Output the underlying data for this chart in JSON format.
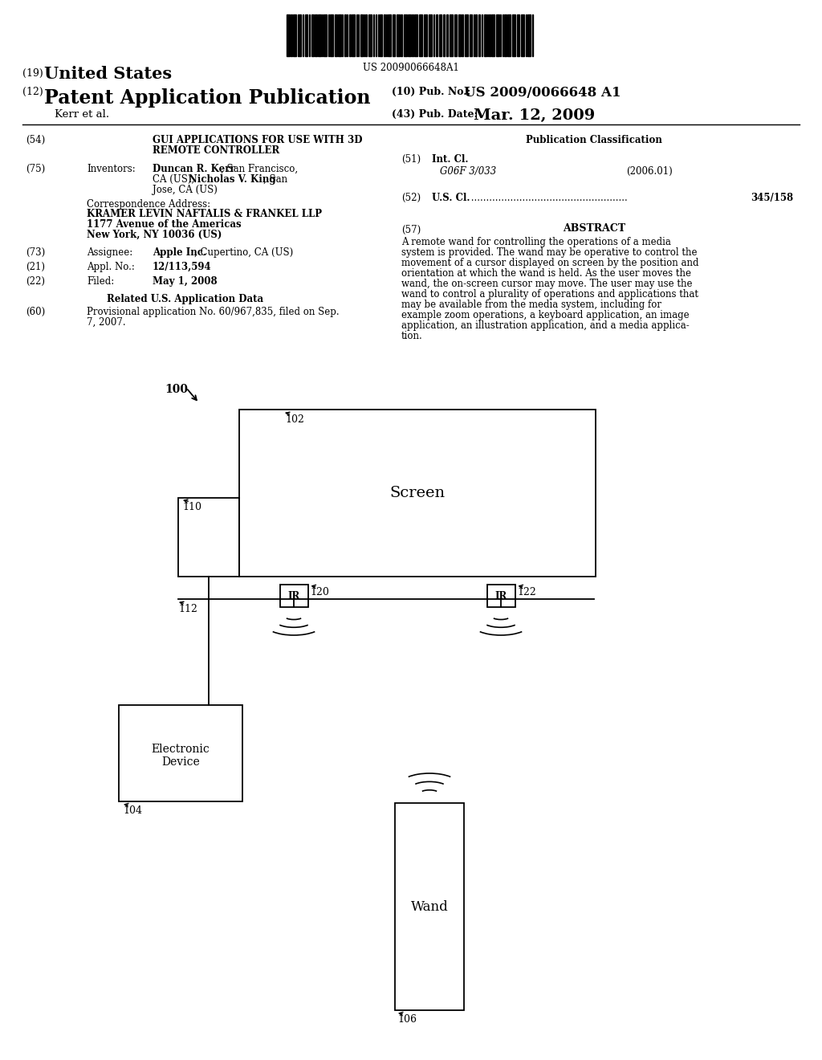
{
  "bg_color": "#ffffff",
  "barcode_text": "US 20090066648A1",
  "title_19": "(19) United States",
  "title_12": "(12) Patent Application Publication",
  "pub_no_label": "(10) Pub. No.:",
  "pub_no_value": "US 2009/0066648 A1",
  "pub_date_label": "(43) Pub. Date:",
  "pub_date_value": "Mar. 12, 2009",
  "kerr_line": "Kerr et al.",
  "section54_label": "(54)",
  "section54_title1": "GUI APPLICATIONS FOR USE WITH 3D",
  "section54_title2": "REMOTE CONTROLLER",
  "section75_label": "(75)",
  "section75_key": "Inventors:",
  "corr_addr_label": "Correspondence Address:",
  "corr_addr_name": "KRAMER LEVIN NAFTALIS & FRANKEL LLP",
  "corr_addr_street": "1177 Avenue of the Americas",
  "corr_addr_city": "New York, NY 10036 (US)",
  "section73_label": "(73)",
  "section73_key": "Assignee:",
  "section21_label": "(21)",
  "section21_key": "Appl. No.:",
  "section21_val": "12/113,594",
  "section22_label": "(22)",
  "section22_key": "Filed:",
  "section22_val": "May 1, 2008",
  "related_header": "Related U.S. Application Data",
  "section60_label": "(60)",
  "section60_val1": "Provisional application No. 60/967,835, filed on Sep.",
  "section60_val2": "7, 2007.",
  "pub_class_header": "Publication Classification",
  "section51_label": "(51)",
  "section51_key": "Int. Cl.",
  "section51_class": "G06F 3/033",
  "section51_year": "(2006.01)",
  "section52_label": "(52)",
  "section52_key": "U.S. Cl.",
  "section52_val": "345/158",
  "section57_label": "(57)",
  "section57_header": "ABSTRACT",
  "abstract_line1": "A remote wand for controlling the operations of a media",
  "abstract_line2": "system is provided. The wand may be operative to control the",
  "abstract_line3": "movement of a cursor displayed on screen by the position and",
  "abstract_line4": "orientation at which the wand is held. As the user moves the",
  "abstract_line5": "wand, the on-screen cursor may move. The user may use the",
  "abstract_line6": "wand to control a plurality of operations and applications that",
  "abstract_line7": "may be available from the media system, including for",
  "abstract_line8": "example zoom operations, a keyboard application, an image",
  "abstract_line9": "application, an illustration application, and a media applica-",
  "abstract_line10": "tion.",
  "screen_label": "Screen",
  "device_label1": "Electronic",
  "device_label2": "Device",
  "wand_label": "Wand",
  "ir_label": "IR"
}
